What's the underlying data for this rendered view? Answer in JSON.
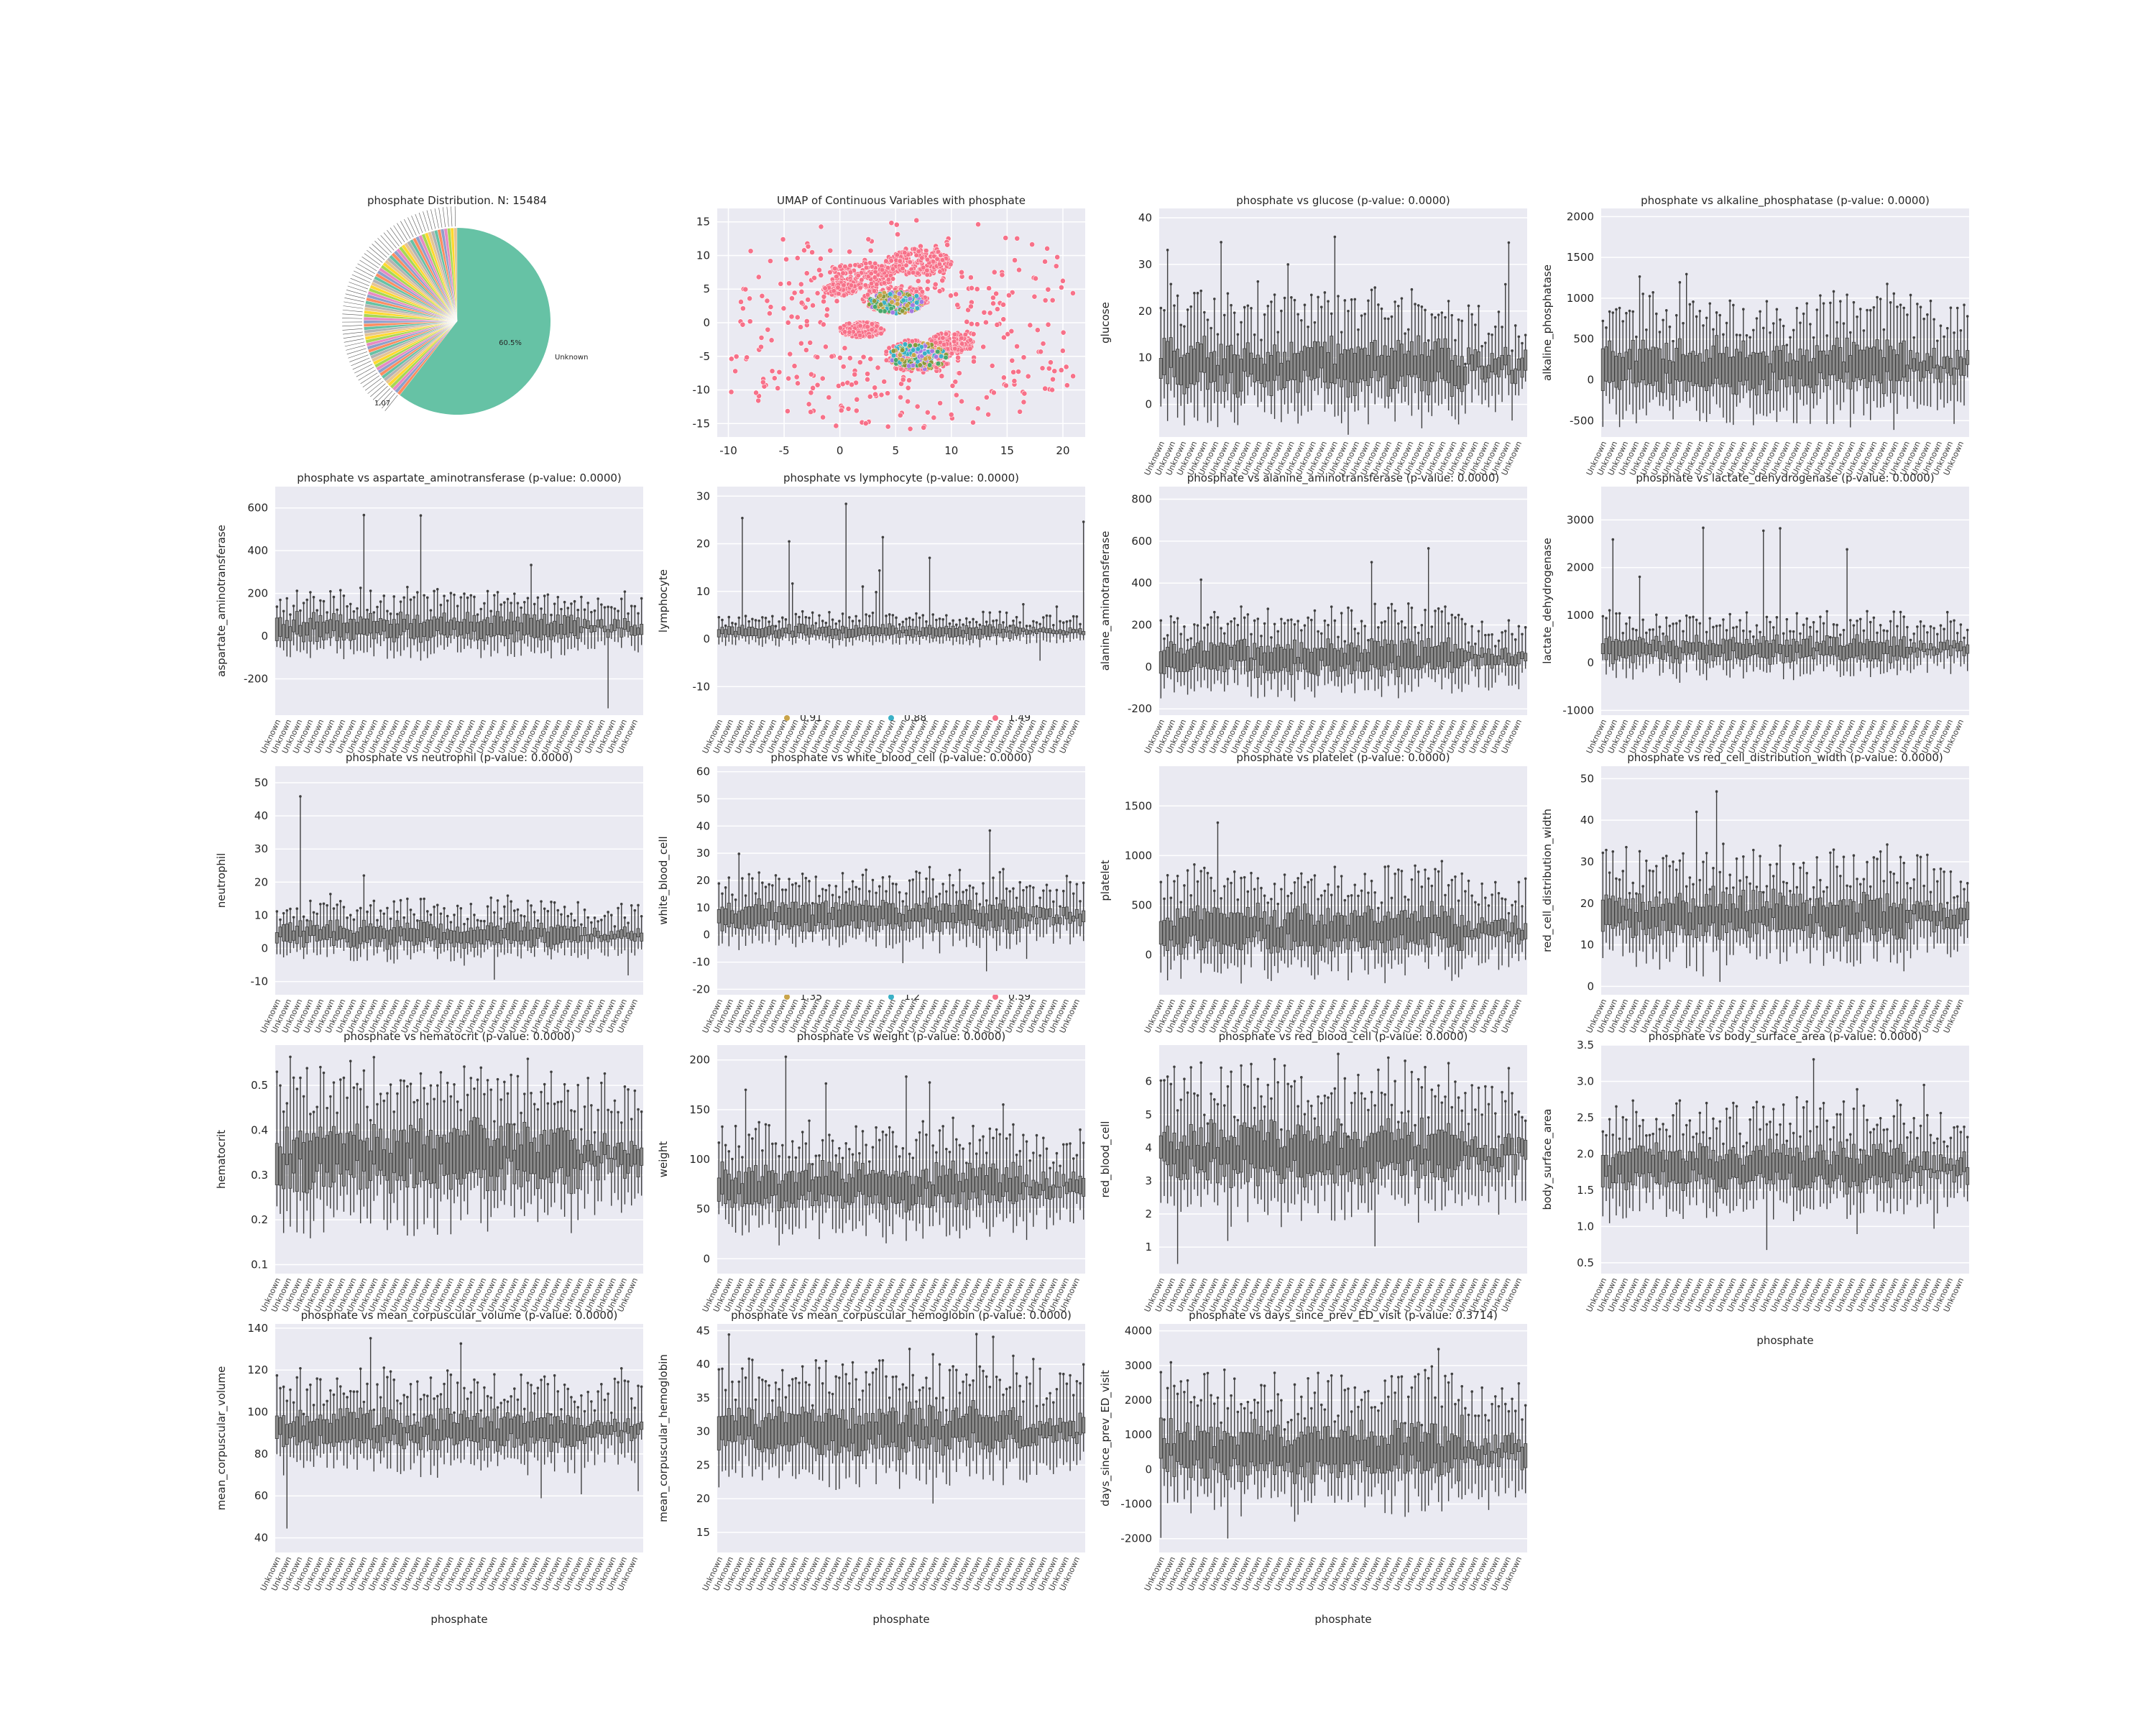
{
  "figure": {
    "colors": {
      "plot_bg": "#eaeaf2",
      "grid": "#ffffff",
      "box": "#8a8a8a",
      "box_edge": "#3f3f3f",
      "text": "#262626",
      "pie_main": "#66c2a5",
      "umap_main": "#f77189"
    },
    "pie": {
      "title": "phosphate Distribution. N: 15484",
      "slice_label": "60.5%",
      "category_label": "Unknown",
      "minor_label": "1.07",
      "main_fraction": 0.605
    },
    "umap": {
      "title": "UMAP of Continuous Variables with phosphate",
      "xlim": [
        -11,
        22
      ],
      "ylim": [
        -17,
        17
      ],
      "xticks": [
        "-10",
        "-5",
        "0",
        "5",
        "10",
        "15",
        "20"
      ],
      "yticks": [
        "-15",
        "-10",
        "-5",
        "0",
        "5",
        "10",
        "15"
      ],
      "legend_row1": [
        "0.91",
        "0.88",
        "1.49"
      ],
      "legend_row2": [
        "1.35",
        "1.2",
        "0.59"
      ],
      "legend_colors": [
        "#c9a44a",
        "#3ab0c6",
        "#f77189"
      ]
    },
    "x_tick_label": "Unknown",
    "xlabel": "phosphate"
  },
  "chart_data": [
    {
      "type": "pie",
      "title": "phosphate Distribution. N: 15484",
      "slices": [
        {
          "label": "Unknown",
          "percent": 60.5
        },
        {
          "label": "1.07",
          "percent": null
        }
      ]
    },
    {
      "type": "scatter",
      "title": "UMAP of Continuous Variables with phosphate",
      "xlim": [
        -11,
        22
      ],
      "ylim": [
        -17,
        17
      ],
      "legend": [
        "0.91",
        "0.88",
        "1.49",
        "1.35",
        "1.2",
        "0.59"
      ]
    },
    {
      "type": "box",
      "title": "phosphate vs glucose (p-value: 0.0000)",
      "ylabel": "glucose",
      "xlabel": "",
      "ylim": [
        -7,
        42
      ],
      "yticks": [
        "0",
        "10",
        "20",
        "30",
        "40"
      ],
      "center": 8,
      "spread": 6,
      "spike": 40,
      "low": -5
    },
    {
      "type": "box",
      "title": "phosphate vs alkaline_phosphatase (p-value: 0.0000)",
      "ylabel": "alkaline_phosphatase",
      "xlabel": "",
      "ylim": [
        -700,
        2100
      ],
      "yticks": [
        "-500",
        "0",
        "500",
        "1000",
        "1500",
        "2000"
      ],
      "center": 150,
      "spread": 350,
      "spike": 1950,
      "low": -550
    },
    {
      "type": "box",
      "title": "phosphate vs aspartate_aminotransferase (p-value: 0.0000)",
      "ylabel": "aspartate_aminotransferase",
      "xlabel": "",
      "ylim": [
        -370,
        700
      ],
      "yticks": [
        "-200",
        "0",
        "200",
        "400",
        "600"
      ],
      "center": 40,
      "spread": 70,
      "spike": 640,
      "low": -340
    },
    {
      "type": "box",
      "title": "phosphate vs lymphocyte (p-value: 0.0000)",
      "ylabel": "lymphocyte",
      "xlabel": "",
      "ylim": [
        -16,
        32
      ],
      "yticks": [
        "-10",
        "0",
        "10",
        "20",
        "30"
      ],
      "center": 1.5,
      "spread": 1.5,
      "spike": 30,
      "low": -13
    },
    {
      "type": "box",
      "title": "phosphate vs alanine_aminotransferase (p-value: 0.0000)",
      "ylabel": "alanine_aminotransferase",
      "xlabel": "",
      "ylim": [
        -230,
        860
      ],
      "yticks": [
        "-200",
        "0",
        "200",
        "400",
        "600",
        "800"
      ],
      "center": 40,
      "spread": 90,
      "spike": 820,
      "low": -170
    },
    {
      "type": "box",
      "title": "phosphate vs lactate_dehydrogenase (p-value: 0.0000)",
      "ylabel": "lactate_dehydrogenase",
      "xlabel": "",
      "ylim": [
        -1100,
        3700
      ],
      "yticks": [
        "-1000",
        "0",
        "1000",
        "2000",
        "3000"
      ],
      "center": 280,
      "spread": 300,
      "spike": 3500,
      "low": -1000
    },
    {
      "type": "box",
      "title": "phosphate vs neutrophil (p-value: 0.0000)",
      "ylabel": "neutrophil",
      "xlabel": "",
      "ylim": [
        -14,
        55
      ],
      "yticks": [
        "-10",
        "0",
        "10",
        "20",
        "30",
        "40",
        "50"
      ],
      "center": 4,
      "spread": 4,
      "spike": 52,
      "low": -11
    },
    {
      "type": "box",
      "title": "phosphate vs white_blood_cell (p-value: 0.0000)",
      "ylabel": "white_blood_cell",
      "xlabel": "",
      "ylim": [
        -22,
        62
      ],
      "yticks": [
        "-20",
        "-10",
        "0",
        "10",
        "20",
        "30",
        "40",
        "50",
        "60"
      ],
      "center": 7,
      "spread": 6,
      "spike": 55,
      "low": -18
    },
    {
      "type": "box",
      "title": "phosphate vs platelet (p-value: 0.0000)",
      "ylabel": "platelet",
      "xlabel": "",
      "ylim": [
        -400,
        1900
      ],
      "yticks": [
        "0",
        "500",
        "1000",
        "1500"
      ],
      "center": 250,
      "spread": 250,
      "spike": 1800,
      "low": -300
    },
    {
      "type": "box",
      "title": "phosphate vs red_cell_distribution_width (p-value: 0.0000)",
      "ylabel": "red_cell_distribution_width",
      "xlabel": "",
      "ylim": [
        -2,
        53
      ],
      "yticks": [
        "0",
        "10",
        "20",
        "30",
        "40",
        "50"
      ],
      "center": 17,
      "spread": 6,
      "spike": 50,
      "low": 0
    },
    {
      "type": "box",
      "title": "phosphate vs hematocrit (p-value: 0.0000)",
      "ylabel": "hematocrit",
      "xlabel": "",
      "ylim": [
        0.08,
        0.59
      ],
      "yticks": [
        "0.1",
        "0.2",
        "0.3",
        "0.4",
        "0.5"
      ],
      "center": 0.34,
      "spread": 0.08,
      "spike": 0.57,
      "low": 0.1
    },
    {
      "type": "box",
      "title": "phosphate vs weight (p-value: 0.0000)",
      "ylabel": "weight",
      "xlabel": "",
      "ylim": [
        -15,
        215
      ],
      "yticks": [
        "0",
        "50",
        "100",
        "150",
        "200"
      ],
      "center": 72,
      "spread": 25,
      "spike": 205,
      "low": -10
    },
    {
      "type": "box",
      "title": "phosphate vs red_blood_cell (p-value: 0.0000)",
      "ylabel": "red_blood_cell",
      "xlabel": "",
      "ylim": [
        0.2,
        7.1
      ],
      "yticks": [
        "1",
        "2",
        "3",
        "4",
        "5",
        "6"
      ],
      "center": 3.8,
      "spread": 1,
      "spike": 6.9,
      "low": 0.4
    },
    {
      "type": "box",
      "title": "phosphate vs body_surface_area (p-value: 0.0000)",
      "ylabel": "body_surface_area",
      "xlabel": "phosphate",
      "ylim": [
        0.35,
        3.5
      ],
      "yticks": [
        "0.5",
        "1.0",
        "1.5",
        "2.0",
        "2.5",
        "3.0",
        "3.5"
      ],
      "center": 1.8,
      "spread": 0.35,
      "spike": 3.4,
      "low": 0.5
    },
    {
      "type": "box",
      "title": "phosphate vs mean_corpuscular_volume (p-value: 0.0000)",
      "ylabel": "mean_corpuscular_volume",
      "xlabel": "phosphate",
      "ylim": [
        33,
        142
      ],
      "yticks": [
        "40",
        "60",
        "80",
        "100",
        "120",
        "140"
      ],
      "center": 91,
      "spread": 10,
      "spike": 137,
      "low": 37
    },
    {
      "type": "box",
      "title": "phosphate vs mean_corpuscular_hemoglobin (p-value: 0.0000)",
      "ylabel": "mean_corpuscular_hemoglobin",
      "xlabel": "phosphate",
      "ylim": [
        12,
        46
      ],
      "yticks": [
        "15",
        "20",
        "25",
        "30",
        "35",
        "40",
        "45"
      ],
      "center": 30,
      "spread": 4,
      "spike": 45,
      "low": 13
    },
    {
      "type": "box",
      "title": "phosphate vs days_since_prev_ED_visit (p-value: 0.3714)",
      "ylabel": "days_since_prev_ED_visit",
      "xlabel": "phosphate",
      "ylim": [
        -2400,
        4200
      ],
      "yticks": [
        "-2000",
        "-1000",
        "0",
        "1000",
        "2000",
        "3000",
        "4000"
      ],
      "center": 500,
      "spread": 900,
      "spike": 4000,
      "low": -2200
    }
  ]
}
